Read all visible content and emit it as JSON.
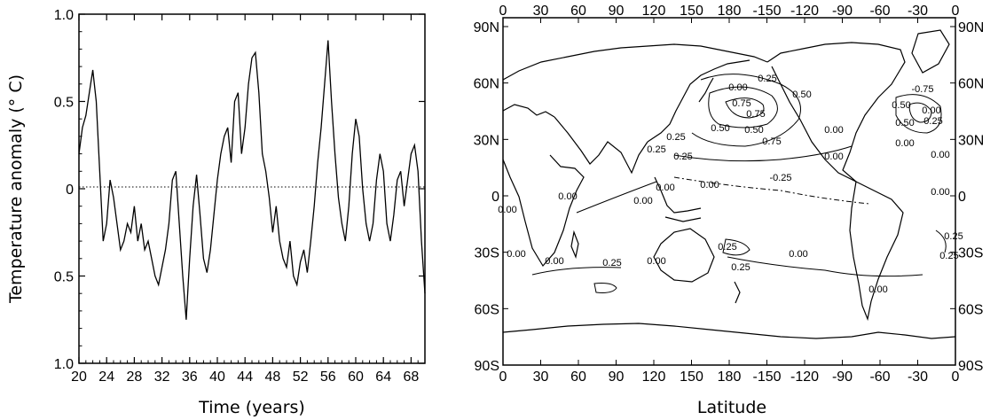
{
  "chart_data": [
    {
      "type": "line",
      "xlabel": "Time (years)",
      "ylabel": "Temperature anomaly (° C)",
      "x_ticks": [
        "20",
        "24",
        "28",
        "32",
        "36",
        "40",
        "44",
        "48",
        "52",
        "56",
        "60",
        "64",
        "68"
      ],
      "x_range": [
        20,
        70
      ],
      "y_ticks": [
        "1.0",
        "0.5",
        "0",
        "0.5",
        "1.0"
      ],
      "y_range": [
        -1.0,
        1.0
      ],
      "reference_line": 0,
      "series": [
        {
          "x": [
            20,
            20.5,
            21,
            21.5,
            22,
            22.5,
            23,
            23.5,
            24,
            24.5,
            25,
            25.5,
            26,
            26.5,
            27,
            27.5,
            28,
            28.5,
            29,
            29.5,
            30,
            30.5,
            31,
            31.5,
            32,
            32.5,
            33,
            33.5,
            34,
            34.5,
            35,
            35.5,
            36,
            36.5,
            37,
            37.5,
            38,
            38.5,
            39,
            39.5,
            40,
            40.5,
            41,
            41.5,
            42,
            42.5,
            43,
            43.5,
            44,
            44.5,
            45,
            45.5,
            46,
            46.5,
            47,
            47.5,
            48,
            48.5,
            49,
            49.5,
            50,
            50.5,
            51,
            51.5,
            52,
            52.5,
            53,
            53.5,
            54,
            54.5,
            55,
            55.5,
            56,
            56.5,
            57,
            57.5,
            58,
            58.5,
            59,
            59.5,
            60,
            60.5,
            61,
            61.5,
            62,
            62.5,
            63,
            63.5,
            64,
            64.5,
            65,
            65.5,
            66,
            66.5,
            67,
            67.5,
            68,
            68.5,
            69,
            69.5,
            70
          ],
          "y": [
            0.2,
            0.35,
            0.42,
            0.55,
            0.68,
            0.5,
            0.1,
            -0.3,
            -0.2,
            0.05,
            -0.05,
            -0.2,
            -0.35,
            -0.3,
            -0.2,
            -0.25,
            -0.1,
            -0.3,
            -0.2,
            -0.35,
            -0.3,
            -0.4,
            -0.5,
            -0.55,
            -0.45,
            -0.35,
            -0.2,
            0.05,
            0.1,
            -0.2,
            -0.5,
            -0.75,
            -0.4,
            -0.1,
            0.08,
            -0.15,
            -0.4,
            -0.48,
            -0.35,
            -0.15,
            0.05,
            0.2,
            0.3,
            0.35,
            0.15,
            0.5,
            0.55,
            0.2,
            0.35,
            0.6,
            0.75,
            0.78,
            0.55,
            0.2,
            0.1,
            -0.05,
            -0.25,
            -0.1,
            -0.3,
            -0.4,
            -0.45,
            -0.3,
            -0.5,
            -0.55,
            -0.42,
            -0.35,
            -0.48,
            -0.3,
            -0.1,
            0.15,
            0.35,
            0.6,
            0.85,
            0.5,
            0.2,
            -0.05,
            -0.2,
            -0.3,
            -0.1,
            0.2,
            0.4,
            0.3,
            0.0,
            -0.2,
            -0.3,
            -0.2,
            0.05,
            0.2,
            0.1,
            -0.2,
            -0.3,
            -0.15,
            0.05,
            0.1,
            -0.1,
            0.05,
            0.2,
            0.25,
            0.1,
            -0.3,
            -0.6
          ]
        }
      ]
    },
    {
      "type": "heatmap",
      "subtype": "contour map",
      "xlabel": "Latitude",
      "top_ticks": [
        "0",
        "30",
        "60",
        "90",
        "120",
        "150",
        "180",
        "-150",
        "-120",
        "-90",
        "-60",
        "-30",
        "0"
      ],
      "bottom_ticks": [
        "0",
        "30",
        "60",
        "90",
        "120",
        "150",
        "180",
        "-150",
        "-120",
        "-90",
        "-60",
        "-30",
        "0"
      ],
      "left_ticks": [
        "90N",
        "60N",
        "30N",
        "0",
        "30S",
        "60S",
        "90S"
      ],
      "right_ticks": [
        "90N",
        "60N",
        "30N",
        "0",
        "30S",
        "60S",
        "90S"
      ],
      "contour_labels": [
        "0.00",
        "0.25",
        "0.50",
        "0.75",
        "0.75",
        "0.50",
        "0.25",
        "0.50",
        "0.75",
        "0.25",
        "-0.25",
        "0.25",
        "0.50",
        "0.00",
        "-0.75",
        "0.50",
        "0.25",
        "0.00",
        "0.00",
        "0.00",
        "0.00",
        "0.00",
        "0.00",
        "0.00",
        "0.00",
        "0.00",
        "0.00",
        "0.00",
        "0.00",
        "0.25",
        "0.00",
        "0.25",
        "0.25",
        "0.00",
        "0.00",
        "0.25",
        "0.25"
      ]
    }
  ]
}
